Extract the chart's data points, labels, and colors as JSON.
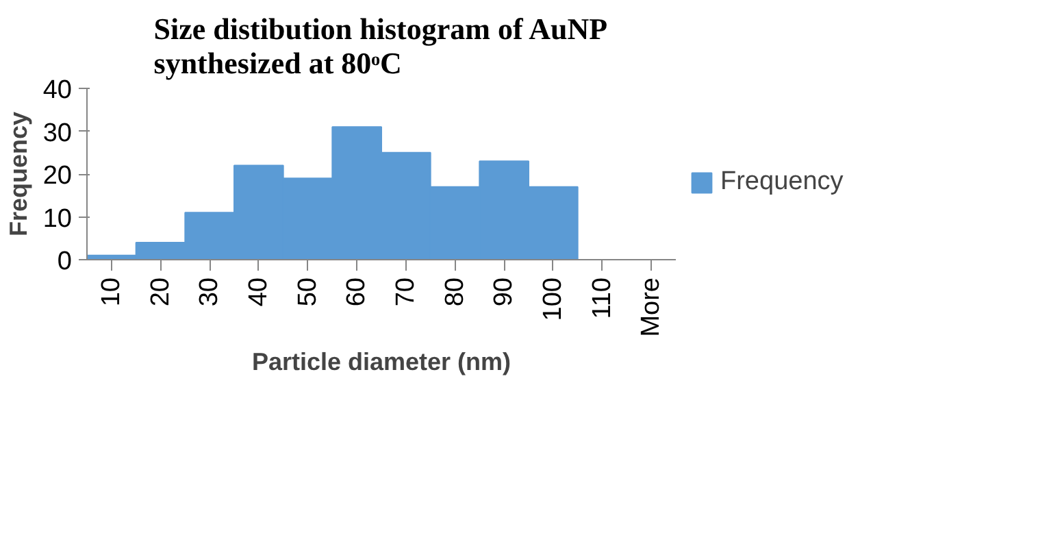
{
  "chart_data": {
    "type": "bar",
    "title": "Size distibution histogram of AuNP\nsynthesized at 80ᵒC",
    "xlabel": "Particle diameter (nm)",
    "ylabel": "Frequency",
    "categories": [
      "10",
      "20",
      "30",
      "40",
      "50",
      "60",
      "70",
      "80",
      "90",
      "100",
      "110",
      "More"
    ],
    "series": [
      {
        "name": "Frequency",
        "color": "#5b9bd5",
        "values": [
          1,
          4,
          11,
          22,
          19,
          31,
          25,
          17,
          23,
          17,
          0,
          0
        ]
      }
    ],
    "ylim": [
      0,
      40
    ],
    "yticks": [
      0,
      10,
      20,
      30,
      40
    ],
    "grid": false,
    "legend": "right"
  }
}
